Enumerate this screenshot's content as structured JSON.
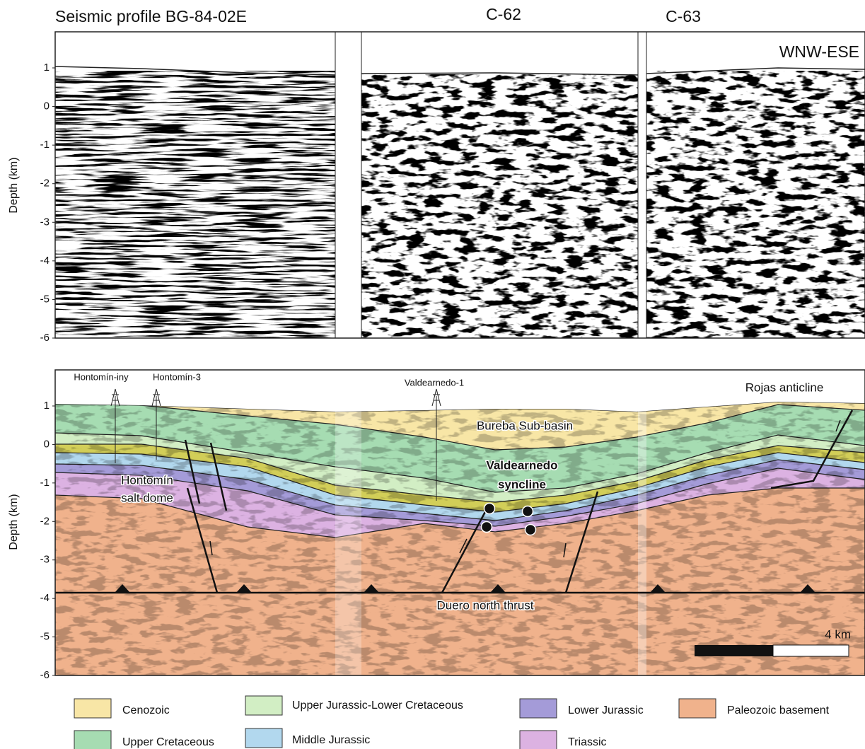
{
  "top_panel": {
    "titles": [
      "Seismic profile BG-84-02E",
      "C-62",
      "C-63"
    ],
    "direction": "WNW-ESE",
    "y_axis": {
      "label": "Depth (km)",
      "ticks": [
        1,
        0,
        -1,
        -2,
        -3,
        -4,
        -5,
        -6
      ]
    }
  },
  "bottom_panel": {
    "y_axis": {
      "label": "Depth (km)",
      "ticks": [
        1,
        0,
        -1,
        -2,
        -3,
        -4,
        -5,
        -6
      ]
    },
    "wells": [
      "Hontomín-iny",
      "Hontomín-3",
      "Valdearnedo-1"
    ],
    "labels": {
      "rojas": "Rojas anticline",
      "bureba": "Bureba Sub-basin",
      "syncline": [
        "Valdearnedo",
        "syncline"
      ],
      "salt_dome": [
        "Hontomín",
        "salt dome"
      ],
      "thrust": "Duero north thrust"
    },
    "scale_bar": "4 km"
  },
  "legend": [
    "Cenozoic",
    "Upper Cretaceous",
    "Upper Jurassic-Lower Cretaceous",
    "Middle Jurassic",
    "Lower Jurassic",
    "Triassic",
    "Paleozoic basement"
  ]
}
